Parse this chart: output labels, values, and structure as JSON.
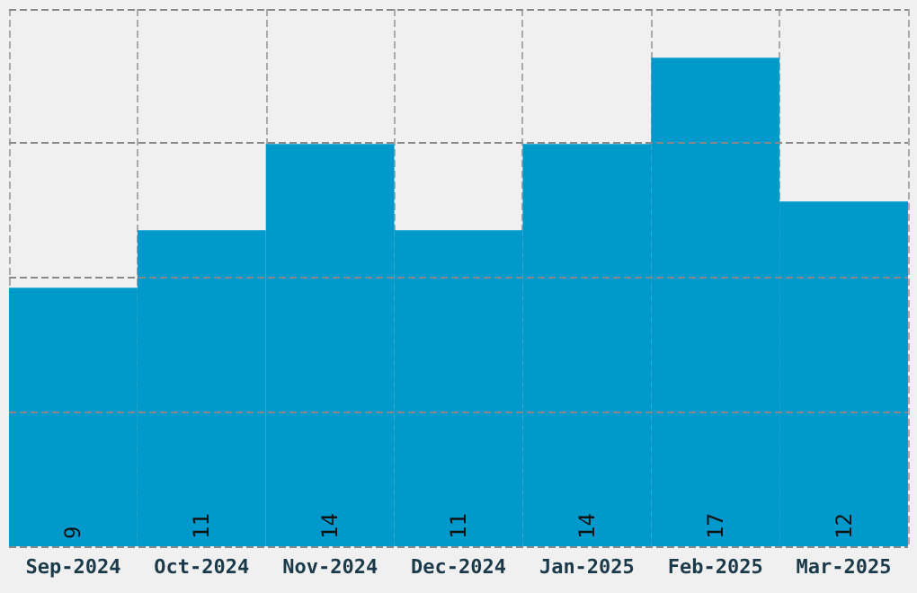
{
  "chart_data": {
    "type": "bar",
    "categories": [
      "Sep-2024",
      "Oct-2024",
      "Nov-2024",
      "Dec-2024",
      "Jan-2025",
      "Feb-2025",
      "Mar-2025"
    ],
    "values": [
      9,
      11,
      14,
      11,
      14,
      17,
      12
    ],
    "color": "#0099cc",
    "data_labels": true,
    "ylim": [
      0,
      18.7
    ],
    "yticks": [
      {
        "value": 0,
        "label": null
      },
      {
        "value": 4.675,
        "label": null
      },
      {
        "value": 9.35,
        "label": null
      },
      {
        "value": 14.025,
        "label": null
      },
      {
        "value": 18.7,
        "label": null
      }
    ],
    "tick_labels": "x",
    "grid": true
  }
}
